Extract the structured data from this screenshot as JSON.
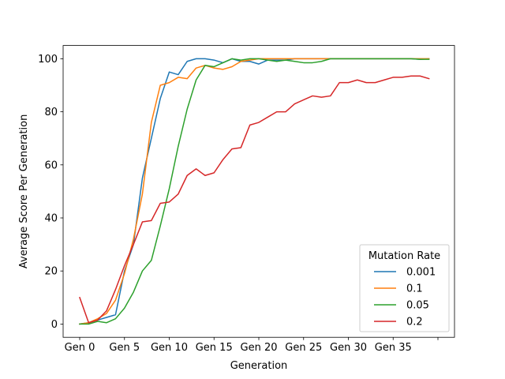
{
  "chart_data": {
    "type": "line",
    "xlabel": "Generation",
    "ylabel": "Average Score Per Generation",
    "x_tick_labels": [
      "Gen 0",
      "Gen 5",
      "Gen 10",
      "Gen 15",
      "Gen 20",
      "Gen 25",
      "Gen 30",
      "Gen 35",
      ""
    ],
    "y_ticks": [
      0,
      20,
      40,
      60,
      80,
      100
    ],
    "xlim": [
      -1.85,
      41.85
    ],
    "ylim": [
      -5,
      105
    ],
    "grid": false,
    "legend": {
      "title": "Mutation Rate",
      "placement": "lower right"
    },
    "series": [
      {
        "name": "0.001",
        "color": "#1f77b4",
        "values": [
          0,
          0.5,
          1.5,
          2.5,
          3.5,
          20,
          30,
          55,
          70,
          85,
          95,
          94,
          99,
          100,
          100,
          99.5,
          98.5,
          100,
          99,
          99,
          98,
          99.5,
          99.5,
          99.5,
          100,
          100,
          100,
          100,
          100,
          100,
          100,
          100,
          100,
          100,
          100,
          100,
          100,
          100,
          99.8,
          100
        ]
      },
      {
        "name": "0.1",
        "color": "#ff7f0e",
        "values": [
          0,
          0.5,
          2,
          4,
          9,
          19,
          32,
          49,
          76,
          90,
          91,
          93,
          92.5,
          96.5,
          97.5,
          96.5,
          96,
          97,
          99,
          99.5,
          100,
          100,
          100,
          100,
          100,
          100,
          100,
          100,
          100,
          100,
          100,
          100,
          100,
          100,
          100,
          100,
          100,
          100,
          100,
          100
        ]
      },
      {
        "name": "0.05",
        "color": "#2ca02c",
        "values": [
          0,
          0,
          1,
          0.5,
          2,
          6,
          12,
          20,
          24,
          37,
          51,
          67,
          81,
          92,
          97.5,
          97,
          98.5,
          100,
          99.5,
          100,
          100,
          99.5,
          99,
          99.5,
          99,
          98.5,
          98.5,
          99,
          100,
          100,
          100,
          100,
          100,
          100,
          100,
          100,
          100,
          100,
          99.8,
          99.8
        ]
      },
      {
        "name": "0.2",
        "color": "#d62728",
        "values": [
          10,
          0.5,
          1.5,
          5,
          13,
          22,
          30,
          38.5,
          39,
          45.5,
          46,
          49,
          56,
          58.5,
          56,
          57,
          62,
          66,
          66.5,
          75,
          76,
          78,
          80,
          80,
          83,
          84.5,
          86,
          85.5,
          86,
          91,
          91,
          92,
          91,
          91,
          92,
          93,
          93,
          93.5,
          93.5,
          92.5
        ]
      }
    ]
  }
}
